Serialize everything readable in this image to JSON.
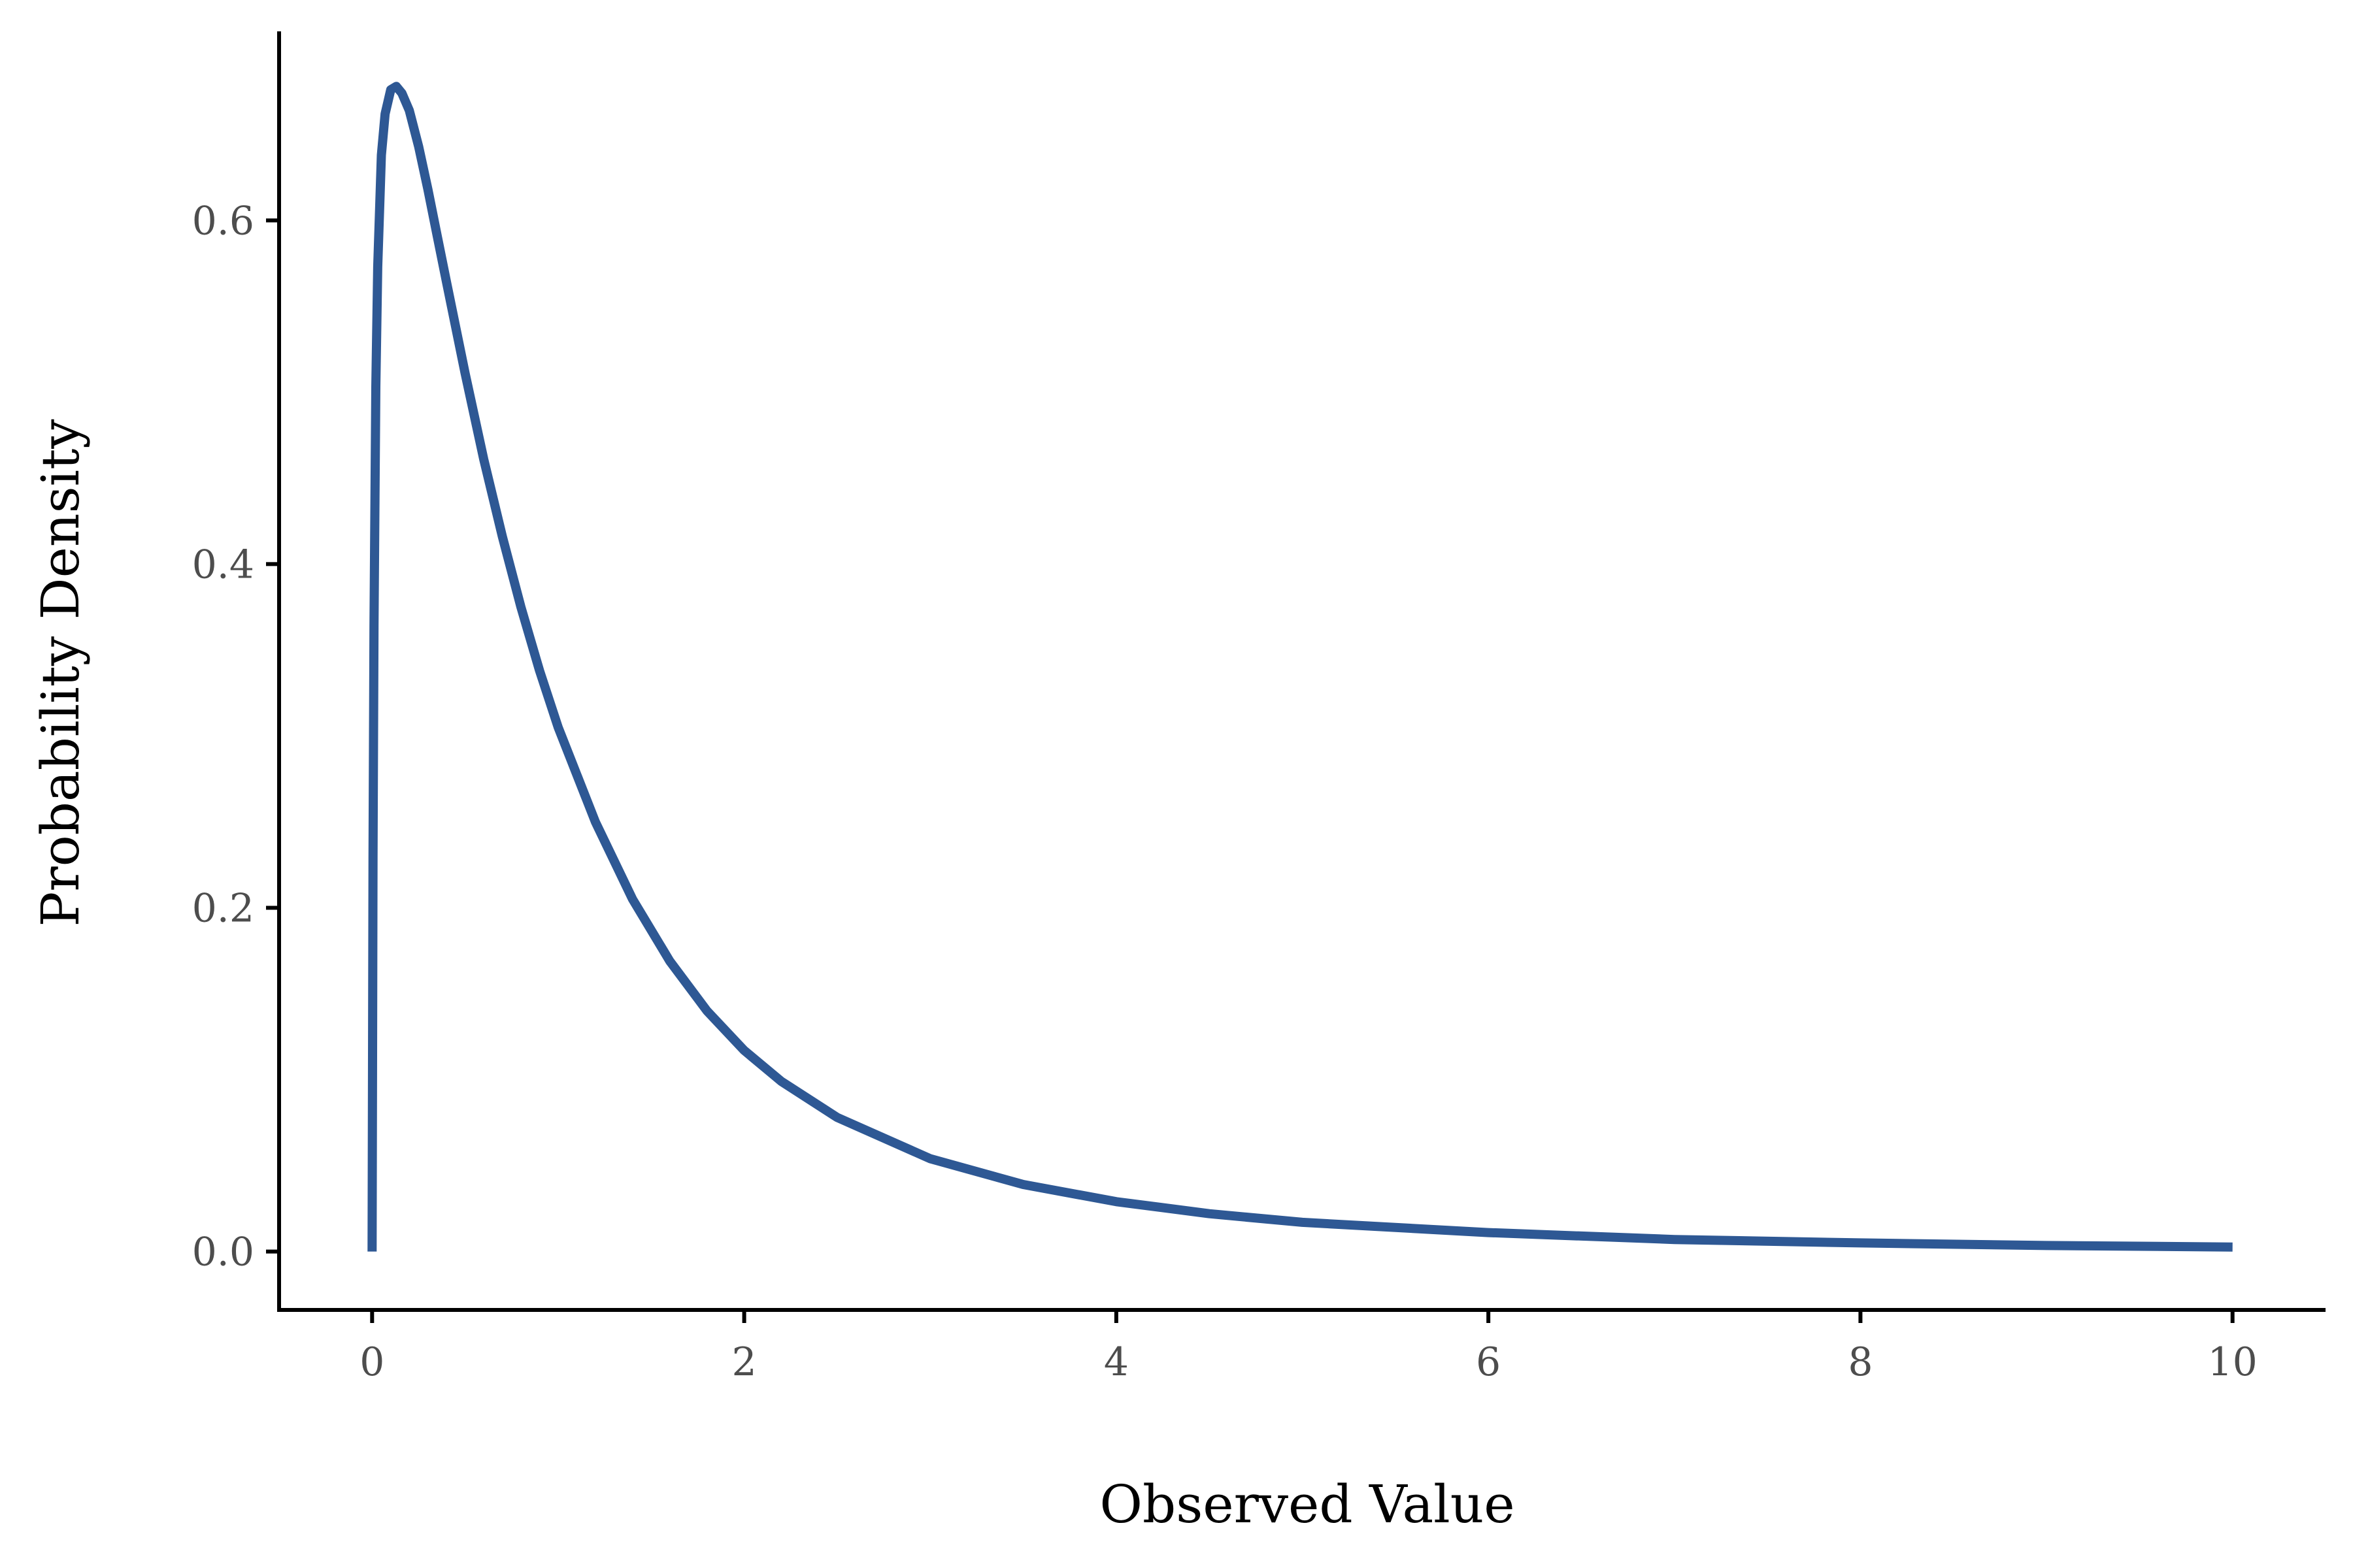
{
  "chart_data": {
    "type": "line",
    "title": "",
    "xlabel": "Observed Value",
    "ylabel": "Probability Density",
    "xlim": [
      -0.5,
      10.5
    ],
    "ylim": [
      -0.034,
      0.71
    ],
    "x_ticks": [
      0,
      2,
      4,
      6,
      8,
      10
    ],
    "x_tick_labels": [
      "0",
      "2",
      "4",
      "6",
      "8",
      "10"
    ],
    "y_ticks": [
      0.0,
      0.2,
      0.4,
      0.6
    ],
    "y_tick_labels": [
      "0.0",
      "0.2",
      "0.4",
      "0.6"
    ],
    "grid": false,
    "legend": "none",
    "line_color": "#2e5894",
    "series": [
      {
        "x": [
          0,
          0.005,
          0.01,
          0.02,
          0.03,
          0.05,
          0.07,
          0.1,
          0.13,
          0.16,
          0.2,
          0.25,
          0.3,
          0.35,
          0.4,
          0.5,
          0.6,
          0.7,
          0.8,
          0.9,
          1.0,
          1.2,
          1.4,
          1.6,
          1.8,
          2.0,
          2.2,
          2.5,
          3.0,
          3.5,
          4.0,
          4.5,
          5.0,
          6.0,
          7.0,
          8.0,
          9.0,
          10.0
        ],
        "y": [
          0.0,
          0.229,
          0.364,
          0.503,
          0.573,
          0.638,
          0.662,
          0.676,
          0.678,
          0.674,
          0.664,
          0.643,
          0.618,
          0.591,
          0.564,
          0.511,
          0.461,
          0.416,
          0.375,
          0.338,
          0.305,
          0.25,
          0.205,
          0.169,
          0.14,
          0.117,
          0.099,
          0.078,
          0.054,
          0.039,
          0.029,
          0.022,
          0.017,
          0.011,
          0.007,
          0.005,
          0.0035,
          0.0026
        ]
      }
    ]
  }
}
